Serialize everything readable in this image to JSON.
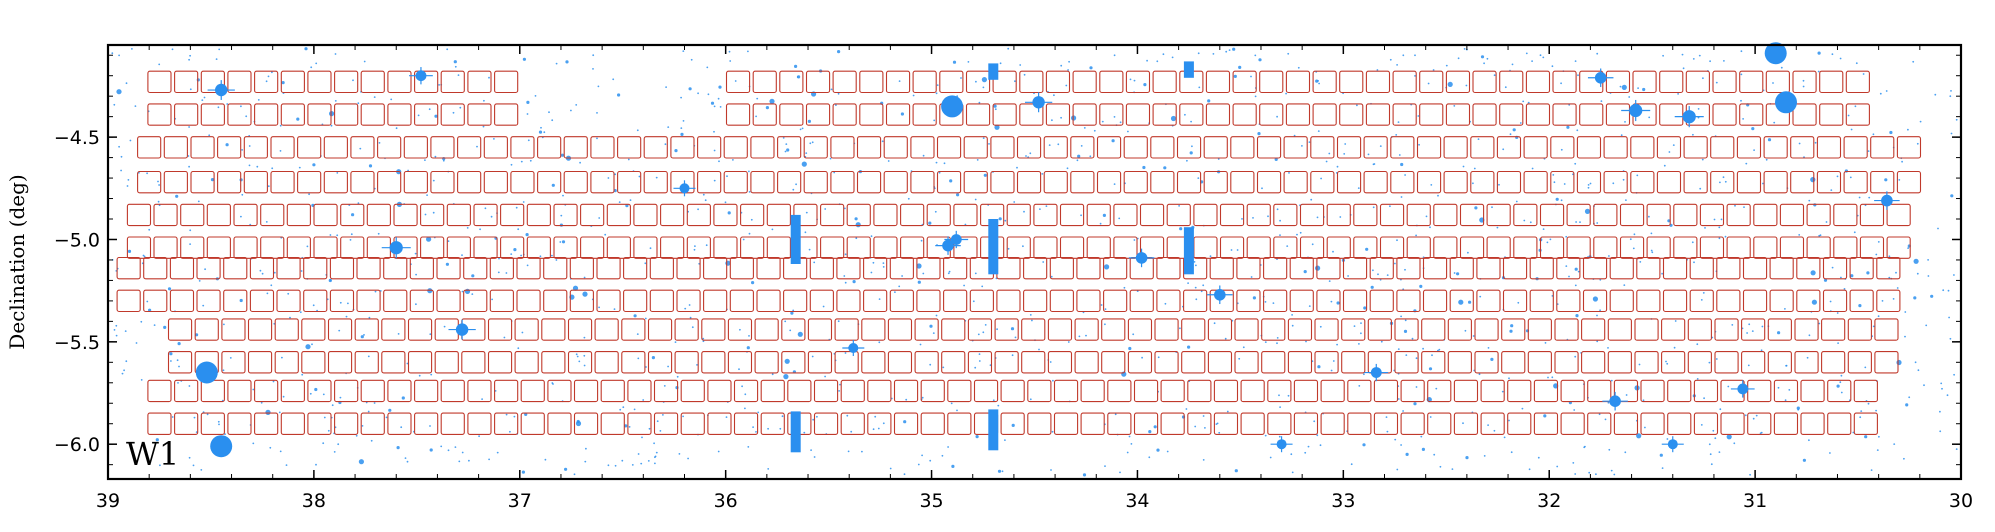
{
  "chart_data": {
    "type": "scatter",
    "title": "",
    "xlabel": "",
    "ylabel": "Declination (deg)",
    "panel_label": "W1",
    "xlim": [
      39,
      30
    ],
    "ylim": [
      -6.17,
      -4.05
    ],
    "x_reversed": true,
    "xticks": [
      39,
      38,
      37,
      36,
      35,
      34,
      33,
      32,
      31,
      30
    ],
    "yticks": [
      -4.5,
      -5.0,
      -5.5,
      -6.0
    ],
    "ytick_labels": [
      "−4.5",
      "−5.0",
      "−5.5",
      "−6.0"
    ],
    "grid": false,
    "colors": {
      "pointings": "#c0392b",
      "stars": "#2a8fef",
      "axes": "#000000"
    },
    "pointing_size_deg": 0.112,
    "pointing_rows": [
      {
        "dec": -4.23,
        "ra_start": 38.75,
        "ra_end": 37.06
      },
      {
        "dec": -4.23,
        "ra_start": 35.94,
        "ra_end": 30.4
      },
      {
        "dec": -4.39,
        "ra_start": 38.75,
        "ra_end": 37.06
      },
      {
        "dec": -4.39,
        "ra_start": 35.94,
        "ra_end": 30.4
      },
      {
        "dec": -4.55,
        "ra_start": 38.8,
        "ra_end": 30.25
      },
      {
        "dec": -4.72,
        "ra_start": 38.8,
        "ra_end": 30.25
      },
      {
        "dec": -4.88,
        "ra_start": 38.85,
        "ra_end": 30.3
      },
      {
        "dec": -5.04,
        "ra_start": 38.85,
        "ra_end": 30.3
      },
      {
        "dec": -5.14,
        "ra_start": 38.9,
        "ra_end": 30.35
      },
      {
        "dec": -5.3,
        "ra_start": 38.9,
        "ra_end": 30.35
      },
      {
        "dec": -5.44,
        "ra_start": 38.65,
        "ra_end": 30.35
      },
      {
        "dec": -5.6,
        "ra_start": 38.65,
        "ra_end": 30.35
      },
      {
        "dec": -5.74,
        "ra_start": 38.75,
        "ra_end": 30.4
      },
      {
        "dec": -5.9,
        "ra_start": 38.75,
        "ra_end": 30.4
      }
    ],
    "pointing_spacing_deg": 0.1295,
    "bright_stars": [
      {
        "ra": 30.9,
        "dec": -4.09,
        "r": 1.0
      },
      {
        "ra": 34.9,
        "dec": -4.35,
        "r": 1.0
      },
      {
        "ra": 30.85,
        "dec": -4.33,
        "r": 1.0
      },
      {
        "ra": 38.52,
        "dec": -5.65,
        "r": 1.0
      },
      {
        "ra": 38.45,
        "dec": -6.01,
        "r": 1.0
      },
      {
        "ra": 38.45,
        "dec": -4.27,
        "r": 0.4
      },
      {
        "ra": 34.48,
        "dec": -4.33,
        "r": 0.4
      },
      {
        "ra": 31.58,
        "dec": -4.37,
        "r": 0.45
      },
      {
        "ra": 31.32,
        "dec": -4.4,
        "r": 0.45
      },
      {
        "ra": 31.75,
        "dec": -4.21,
        "r": 0.35
      },
      {
        "ra": 37.6,
        "dec": -5.04,
        "r": 0.45
      },
      {
        "ra": 33.98,
        "dec": -5.09,
        "r": 0.35
      },
      {
        "ra": 33.6,
        "dec": -5.27,
        "r": 0.35
      },
      {
        "ra": 37.28,
        "dec": -5.44,
        "r": 0.4
      },
      {
        "ra": 30.36,
        "dec": -4.81,
        "r": 0.35
      },
      {
        "ra": 31.68,
        "dec": -5.79,
        "r": 0.35
      },
      {
        "ra": 31.06,
        "dec": -5.73,
        "r": 0.3
      },
      {
        "ra": 34.92,
        "dec": -5.03,
        "r": 0.35
      },
      {
        "ra": 34.88,
        "dec": -5.0,
        "r": 0.3
      },
      {
        "ra": 37.48,
        "dec": -4.2,
        "r": 0.3
      },
      {
        "ra": 32.84,
        "dec": -5.65,
        "r": 0.3
      },
      {
        "ra": 33.3,
        "dec": -6.0,
        "r": 0.25
      },
      {
        "ra": 31.4,
        "dec": -6.0,
        "r": 0.25
      },
      {
        "ra": 35.38,
        "dec": -5.53,
        "r": 0.25
      },
      {
        "ra": 36.2,
        "dec": -4.75,
        "r": 0.25
      }
    ],
    "bleed_trails": [
      {
        "ra": 35.66,
        "dec_top": -4.88,
        "dec_bottom": -5.12
      },
      {
        "ra": 34.7,
        "dec_top": -4.9,
        "dec_bottom": -5.17
      },
      {
        "ra": 33.75,
        "dec_top": -4.94,
        "dec_bottom": -5.17
      },
      {
        "ra": 35.66,
        "dec_top": -5.84,
        "dec_bottom": -6.04
      },
      {
        "ra": 34.7,
        "dec_top": -5.83,
        "dec_bottom": -6.03
      },
      {
        "ra": 34.7,
        "dec_top": -4.14,
        "dec_bottom": -4.22
      },
      {
        "ra": 33.75,
        "dec_top": -4.13,
        "dec_bottom": -4.21
      }
    ]
  }
}
